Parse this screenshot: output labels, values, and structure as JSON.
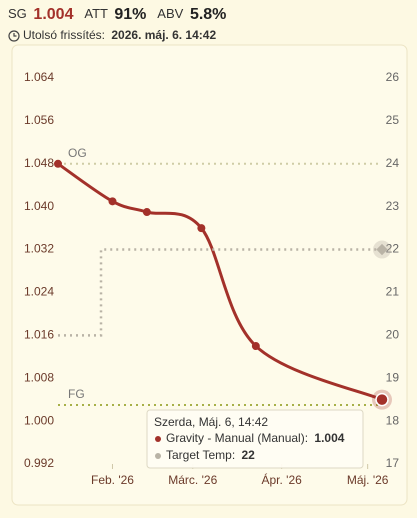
{
  "header": {
    "sg_label": "SG",
    "sg_value": "1.004",
    "att_label": "ATT",
    "att_value": "91%",
    "abv_label": "ABV",
    "abv_value": "5.8%",
    "updated_label": "Utolsó frissítés:",
    "updated_value": "2026. máj. 6. 14:42"
  },
  "chart_data": {
    "type": "line",
    "xlim": [
      13,
      126
    ],
    "xticks": [
      {
        "value": 32,
        "label": "Feb. '26"
      },
      {
        "value": 60,
        "label": "Márc. '26"
      },
      {
        "value": 91,
        "label": "Ápr. '26"
      },
      {
        "value": 121,
        "label": "Máj. '26"
      }
    ],
    "ylim": [
      0.988,
      1.068
    ],
    "yticks": [
      0.992,
      {
        "value": 1,
        "label": "1.000"
      },
      1.008,
      1.016,
      1.024,
      1.032,
      {
        "value": 1.04,
        "label": "1.040"
      },
      1.048,
      1.056,
      1.064
    ],
    "y2lim": [
      16.5,
      26.5
    ],
    "y2ticks": [
      17,
      18,
      19,
      20,
      21,
      22,
      23,
      24,
      25,
      26
    ],
    "grid": false,
    "series": [
      {
        "color": "#a3312a",
        "x": [
          13,
          32,
          44,
          63,
          82,
          126
        ],
        "values": [
          1.048,
          1.041,
          1.039,
          1.036,
          1.014,
          1.004
        ]
      },
      {
        "color": "#b9b3a6",
        "axis": "y2",
        "step": "after",
        "x": [
          13,
          28,
          126
        ],
        "values": [
          20,
          22,
          22
        ]
      }
    ],
    "reference_lines": [
      {
        "label": "OG",
        "value": 1.048,
        "color": "#cfcca6"
      },
      {
        "label": "FG",
        "value": 1.003,
        "color": "#a7b048"
      }
    ],
    "tooltip": {
      "title": "Szerda, Máj. 6, 14:42",
      "rows": [
        {
          "label": "Gravity - Manual (Manual):"
        },
        {
          "label": "Target Temp:"
        }
      ]
    }
  }
}
